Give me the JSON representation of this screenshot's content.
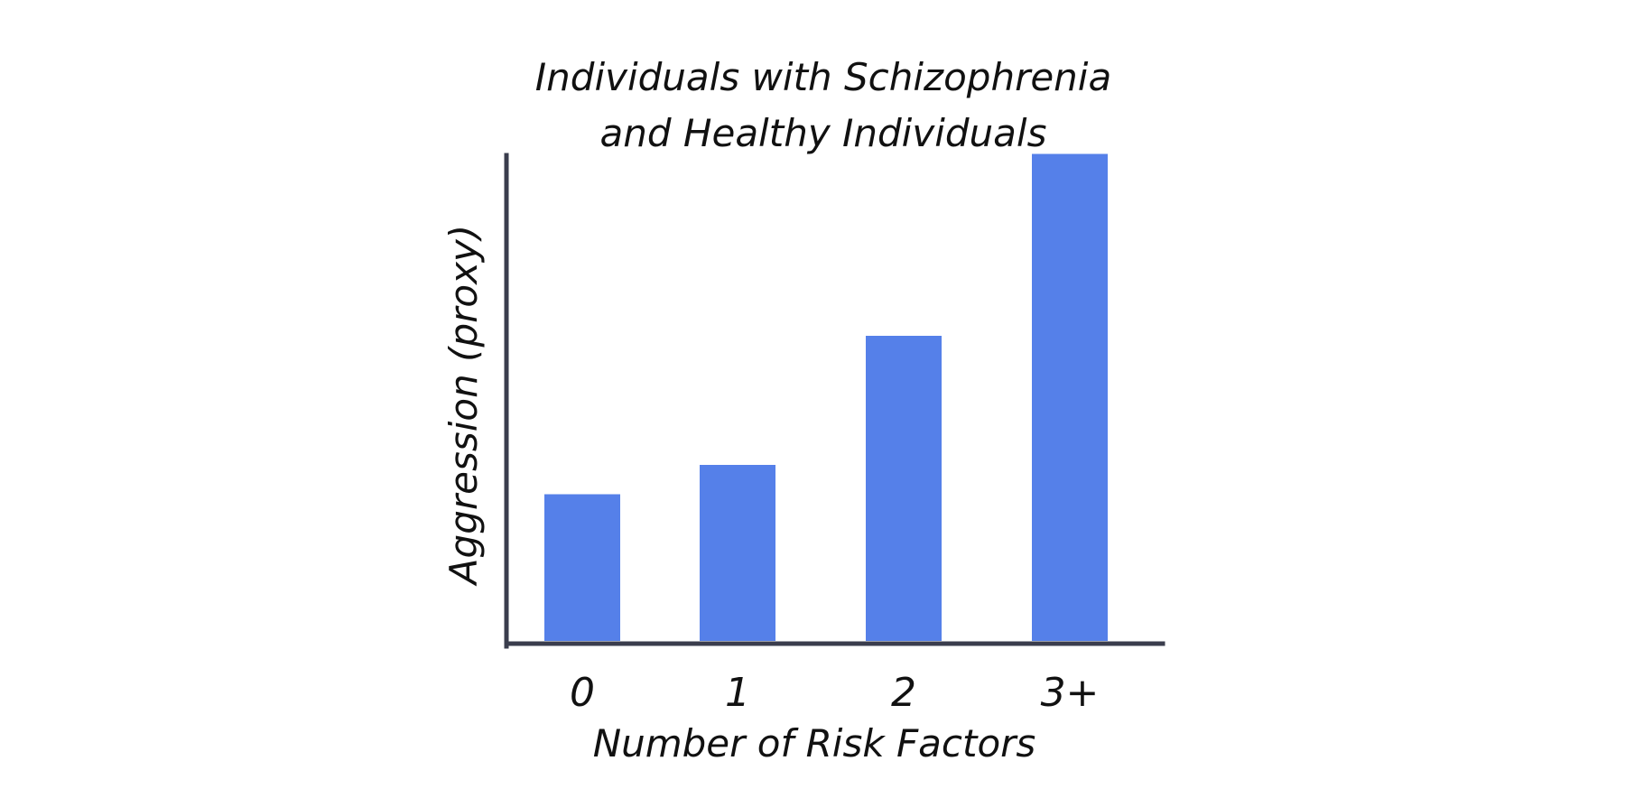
{
  "chart_data": {
    "type": "bar",
    "title": [
      "Individuals with Schizophrenia",
      "and Healthy Individuals"
    ],
    "xlabel": "Number of Risk Factors",
    "ylabel": "Aggression (proxy)",
    "categories": [
      "0",
      "1",
      "2",
      "3+"
    ],
    "values": [
      2.5,
      3.0,
      5.2,
      8.3
    ],
    "ylim": [
      0,
      10
    ],
    "grid": false,
    "colors": {
      "bar": "#5580e9",
      "axis": "#3a3d4d"
    }
  }
}
